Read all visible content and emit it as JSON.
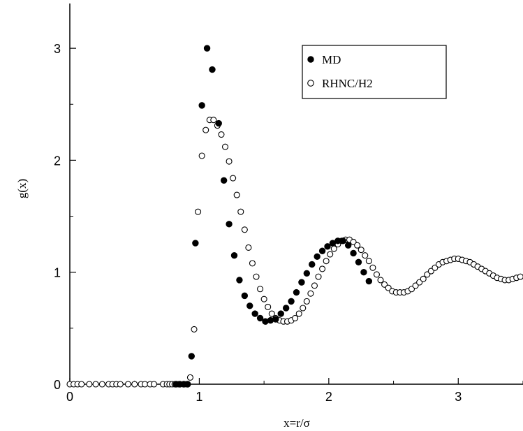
{
  "chart_data": {
    "type": "scatter",
    "title": "",
    "xlabel": "x=r/σ",
    "ylabel": "g(x)",
    "xlim": [
      0,
      3.5
    ],
    "ylim": [
      0,
      3.4
    ],
    "x_ticks": [
      0,
      1,
      2,
      3
    ],
    "y_ticks": [
      0,
      1,
      2,
      3
    ],
    "x_tick_labels": [
      "0",
      "1",
      "2",
      "3"
    ],
    "y_tick_labels": [
      "0",
      "1",
      "2",
      "3"
    ],
    "legend": {
      "placement": "top-right"
    },
    "series": [
      {
        "name": "MD",
        "marker": "filled-circle",
        "color": "#000000",
        "x": [
          0.82,
          0.85,
          0.88,
          0.91,
          0.94,
          0.97,
          1.02,
          1.06,
          1.1,
          1.15,
          1.19,
          1.23,
          1.27,
          1.31,
          1.35,
          1.39,
          1.43,
          1.47,
          1.51,
          1.55,
          1.59,
          1.63,
          1.67,
          1.71,
          1.75,
          1.79,
          1.83,
          1.87,
          1.91,
          1.95,
          1.99,
          2.03,
          2.07,
          2.11,
          2.15,
          2.19,
          2.23,
          2.27,
          2.31
        ],
        "y": [
          0.0,
          0.0,
          0.0,
          0.0,
          0.25,
          1.26,
          2.49,
          3.0,
          2.81,
          2.33,
          1.82,
          1.43,
          1.15,
          0.93,
          0.79,
          0.7,
          0.63,
          0.59,
          0.56,
          0.57,
          0.58,
          0.63,
          0.68,
          0.74,
          0.82,
          0.91,
          0.99,
          1.07,
          1.14,
          1.19,
          1.23,
          1.26,
          1.28,
          1.28,
          1.24,
          1.17,
          1.09,
          1.0,
          0.92
        ]
      },
      {
        "name": "RHNC/H2",
        "marker": "open-circle",
        "color": "#000000",
        "x": [
          0.0,
          0.03,
          0.06,
          0.09,
          0.15,
          0.2,
          0.25,
          0.3,
          0.33,
          0.36,
          0.39,
          0.45,
          0.5,
          0.55,
          0.58,
          0.62,
          0.65,
          0.72,
          0.75,
          0.77,
          0.79,
          0.81,
          0.84,
          0.9,
          0.93,
          0.96,
          0.99,
          1.02,
          1.05,
          1.08,
          1.11,
          1.14,
          1.17,
          1.2,
          1.23,
          1.26,
          1.29,
          1.32,
          1.35,
          1.38,
          1.41,
          1.44,
          1.47,
          1.5,
          1.53,
          1.56,
          1.59,
          1.62,
          1.65,
          1.68,
          1.71,
          1.74,
          1.77,
          1.8,
          1.83,
          1.86,
          1.89,
          1.92,
          1.95,
          1.98,
          2.01,
          2.04,
          2.07,
          2.1,
          2.13,
          2.16,
          2.19,
          2.22,
          2.25,
          2.28,
          2.31,
          2.34,
          2.37,
          2.4,
          2.43,
          2.46,
          2.49,
          2.52,
          2.55,
          2.58,
          2.61,
          2.64,
          2.67,
          2.7,
          2.73,
          2.76,
          2.79,
          2.82,
          2.85,
          2.88,
          2.91,
          2.94,
          2.97,
          3.0,
          3.03,
          3.06,
          3.09,
          3.12,
          3.15,
          3.18,
          3.21,
          3.24,
          3.27,
          3.3,
          3.33,
          3.36,
          3.39,
          3.42,
          3.45,
          3.48
        ],
        "y": [
          0.0,
          0.0,
          0.0,
          0.0,
          0.0,
          0.0,
          0.0,
          0.0,
          0.0,
          0.0,
          0.0,
          0.0,
          0.0,
          0.0,
          0.0,
          0.0,
          0.0,
          0.0,
          0.0,
          0.0,
          0.0,
          0.0,
          0.0,
          0.0,
          0.06,
          0.49,
          1.54,
          2.04,
          2.27,
          2.36,
          2.36,
          2.31,
          2.23,
          2.12,
          1.99,
          1.84,
          1.69,
          1.54,
          1.38,
          1.22,
          1.08,
          0.96,
          0.85,
          0.76,
          0.69,
          0.63,
          0.59,
          0.57,
          0.56,
          0.56,
          0.57,
          0.59,
          0.63,
          0.68,
          0.74,
          0.81,
          0.88,
          0.96,
          1.03,
          1.1,
          1.16,
          1.21,
          1.25,
          1.28,
          1.29,
          1.29,
          1.27,
          1.24,
          1.2,
          1.15,
          1.1,
          1.04,
          0.98,
          0.93,
          0.89,
          0.86,
          0.83,
          0.82,
          0.82,
          0.82,
          0.83,
          0.85,
          0.88,
          0.91,
          0.94,
          0.98,
          1.01,
          1.04,
          1.07,
          1.09,
          1.1,
          1.11,
          1.12,
          1.12,
          1.11,
          1.1,
          1.09,
          1.07,
          1.05,
          1.03,
          1.01,
          0.99,
          0.97,
          0.95,
          0.94,
          0.93,
          0.93,
          0.94,
          0.95,
          0.96
        ]
      }
    ]
  }
}
